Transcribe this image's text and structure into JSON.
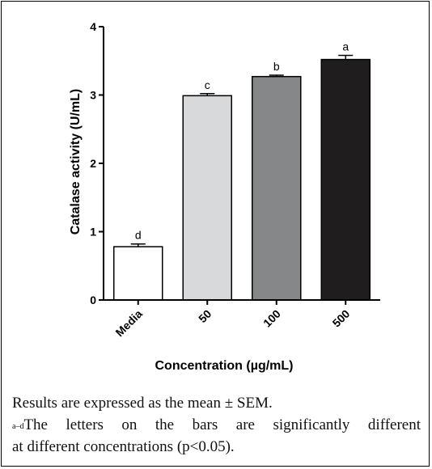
{
  "chart_data": {
    "type": "bar",
    "categories": [
      "Media",
      "50",
      "100",
      "500"
    ],
    "values": [
      0.78,
      2.99,
      3.27,
      3.52
    ],
    "errors": [
      0.04,
      0.03,
      0.02,
      0.06
    ],
    "significance_letters": [
      "d",
      "c",
      "b",
      "a"
    ],
    "bar_colors": [
      "#ffffff",
      "#d8d9db",
      "#858789",
      "#1f1d1e"
    ],
    "xlabel": "Concentration (µg/mL)",
    "ylabel": "Catalase activity (U/mL)",
    "ylim": [
      0,
      4
    ],
    "yticks": [
      "0",
      "1",
      "2",
      "3",
      "4"
    ],
    "grid": false,
    "legend": "none"
  },
  "caption": {
    "line1": "Results are expressed as the mean ± SEM.",
    "superscript": "a–d",
    "line2": "The letters on the bars are significantly different",
    "line3": "at different concentrations (p<0.05)."
  }
}
